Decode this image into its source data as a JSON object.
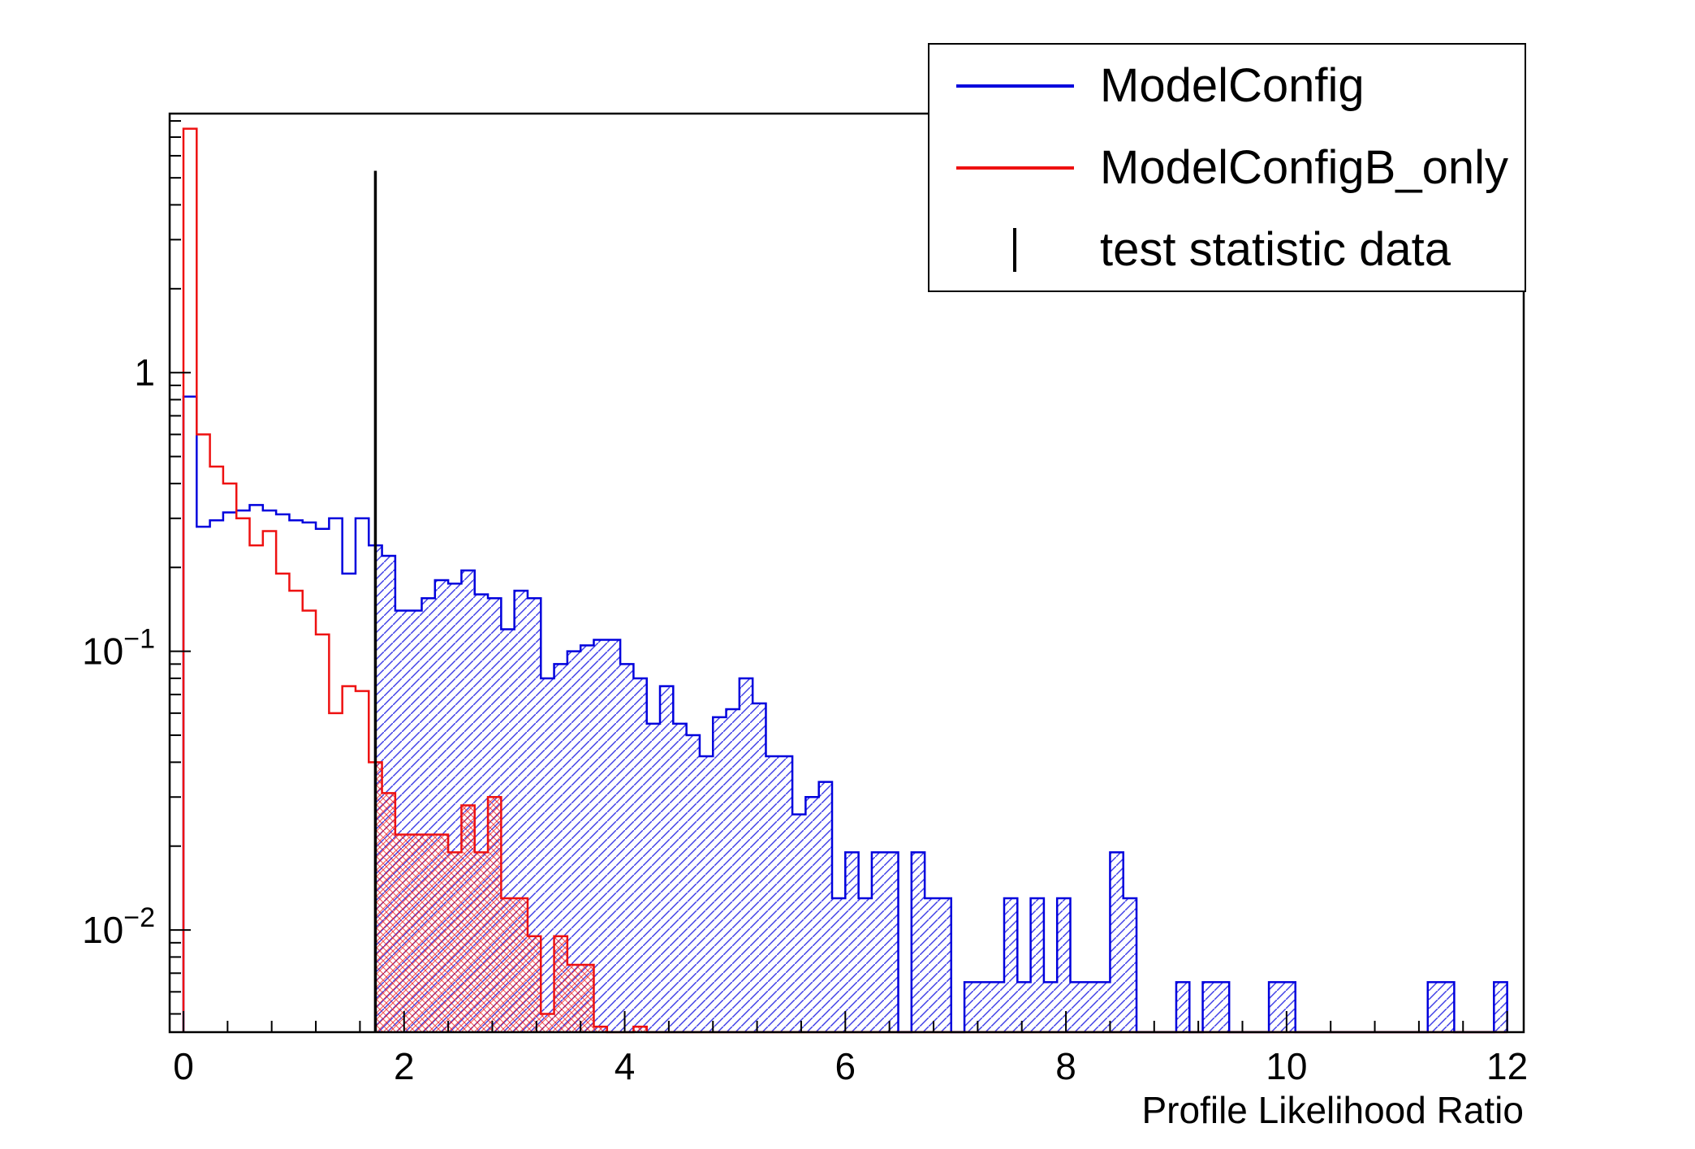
{
  "figure": {
    "background": "#ffffff"
  },
  "chart_data": {
    "type": "histogram-step",
    "title": "",
    "xlabel": "Profile Likelihood Ratio",
    "ylabel": "",
    "ylog": true,
    "xlim": [
      -0.125,
      12.15
    ],
    "ylim": [
      0.0043,
      8.5
    ],
    "x_major_ticks": [
      0,
      2,
      4,
      6,
      8,
      10,
      12
    ],
    "x_minor_step": 0.4,
    "y_major_ticks": [
      {
        "value": 1,
        "label": "1"
      },
      {
        "value": 0.1,
        "label": "10^−1"
      },
      {
        "value": 0.01,
        "label": "10^−2"
      }
    ],
    "bin_start": 0,
    "bin_width": 0.12,
    "test_statistic_x": 1.74,
    "test_statistic_top_y": 5.3,
    "fill_from_x": 1.74,
    "axis_color": "#000000",
    "series": [
      {
        "name": "ModelConfig",
        "color": "#0000dd",
        "hatch": "diagonal",
        "values": [
          0.82,
          0.28,
          0.295,
          0.315,
          0.32,
          0.335,
          0.32,
          0.31,
          0.295,
          0.29,
          0.275,
          0.3,
          0.19,
          0.3,
          0.24,
          0.22,
          0.14,
          0.14,
          0.155,
          0.18,
          0.175,
          0.195,
          0.16,
          0.155,
          0.12,
          0.165,
          0.155,
          0.08,
          0.09,
          0.1,
          0.105,
          0.11,
          0.11,
          0.09,
          0.08,
          0.055,
          0.075,
          0.055,
          0.05,
          0.042,
          0.058,
          0.062,
          0.08,
          0.065,
          0.042,
          0.042,
          0.026,
          0.03,
          0.034,
          0.013,
          0.019,
          0.013,
          0.019,
          0.019,
          0,
          0.019,
          0.013,
          0.013,
          0,
          0.0065,
          0.0065,
          0.0065,
          0.013,
          0.0065,
          0.013,
          0.0065,
          0.013,
          0.0065,
          0.0065,
          0.0065,
          0.019,
          0.013,
          0,
          0,
          0,
          0.0065,
          0,
          0.0065,
          0.0065,
          0,
          0,
          0,
          0.0065,
          0.0065,
          0,
          0,
          0,
          0,
          0,
          0,
          0,
          0,
          0,
          0,
          0.0065,
          0.0065,
          0,
          0,
          0,
          0.0065
        ]
      },
      {
        "name": "ModelConfigB_only",
        "color": "#ee1111",
        "hatch": "cross",
        "values": [
          7.5,
          0.6,
          0.46,
          0.4,
          0.3,
          0.24,
          0.27,
          0.19,
          0.165,
          0.14,
          0.115,
          0.06,
          0.075,
          0.072,
          0.04,
          0.031,
          0.022,
          0.022,
          0.022,
          0.022,
          0.019,
          0.028,
          0.019,
          0.03,
          0.013,
          0.013,
          0.0095,
          0.005,
          0.0095,
          0.0075,
          0.0075,
          0.0045,
          0,
          0,
          0.0045,
          0,
          0,
          0,
          0,
          0,
          0,
          0,
          0,
          0,
          0,
          0,
          0,
          0,
          0,
          0,
          0,
          0,
          0,
          0,
          0,
          0,
          0,
          0,
          0,
          0,
          0,
          0,
          0,
          0,
          0,
          0,
          0,
          0,
          0,
          0,
          0,
          0,
          0,
          0,
          0,
          0,
          0,
          0,
          0,
          0,
          0,
          0,
          0,
          0,
          0,
          0,
          0,
          0,
          0,
          0,
          0,
          0,
          0,
          0,
          0,
          0,
          0,
          0,
          0,
          0
        ]
      }
    ],
    "legend": [
      {
        "label": "ModelConfig",
        "color": "#0000dd",
        "sample": "hline"
      },
      {
        "label": "ModelConfigB_only",
        "color": "#ee1111",
        "sample": "hline"
      },
      {
        "label": "test statistic data",
        "color": "#000000",
        "sample": "vline"
      }
    ]
  }
}
